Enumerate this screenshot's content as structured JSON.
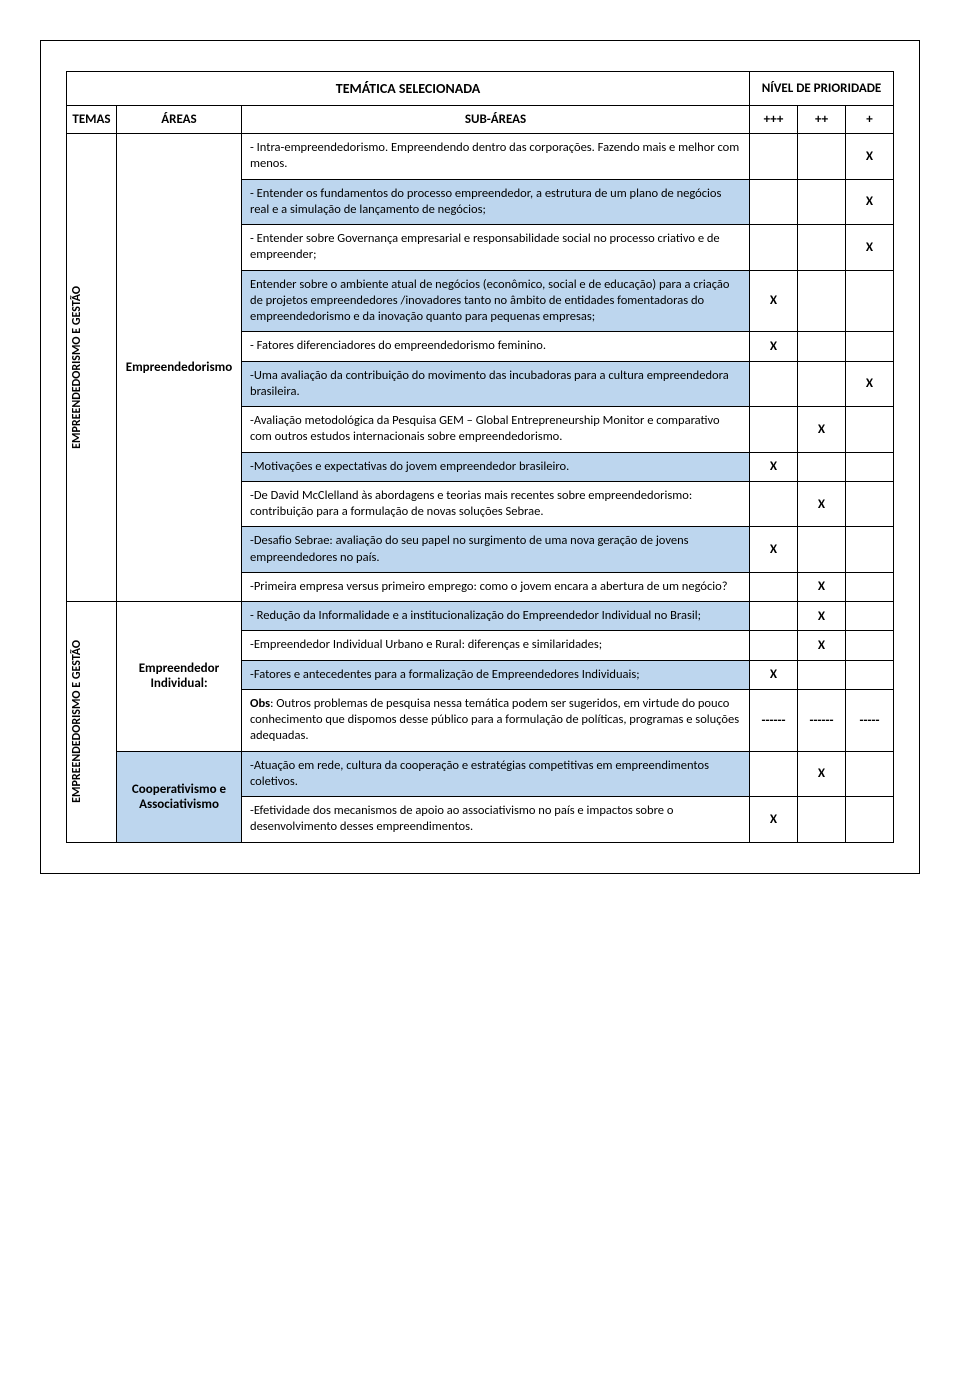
{
  "colors": {
    "row_highlight": "#bdd6ee",
    "border": "#000000",
    "background": "#ffffff"
  },
  "headers": {
    "tematica": "TEMÁTICA SELECIONADA",
    "nivel": "NÍVEL DE PRIORIDADE",
    "temas": "TEMAS",
    "areas": "ÁREAS",
    "subareas": "SUB-ÁREAS",
    "p1": "+++",
    "p2": "++",
    "p3": "+"
  },
  "tema1": "EMPREENDEDORISMO E GESTÃO",
  "tema2": "EMPREENDEDORISMO E GESTÃO",
  "area1": "Empreendedorismo",
  "area2": "Empreendedor Individual:",
  "area3": "Cooperativismo e Associativismo",
  "rows": [
    {
      "text": "- Intra-empreendedorismo. Empreendendo dentro das corporações. Fazendo mais e melhor com menos.",
      "p1": "",
      "p2": "",
      "p3": "X",
      "blue": false
    },
    {
      "text": "- Entender  os  fundamentos do processo empreendedor, a estrutura de um plano de negócios real e a simulação de lançamento de negócios;",
      "p1": "",
      "p2": "",
      "p3": "X",
      "blue": true
    },
    {
      "text": "- Entender sobre Governança empresarial e responsabilidade social no  processo criativo e de empreender;",
      "p1": "",
      "p2": "",
      "p3": "X",
      "blue": false
    },
    {
      "text": "Entender sobre o ambiente atual de negócios (econômico, social e de educação)  para a criação de projetos  empreendedores /inovadores tanto no âmbito de entidades fomentadoras do empreendedorismo e da inovação quanto  para  pequenas empresas;",
      "p1": "X",
      "p2": "",
      "p3": "",
      "blue": true
    },
    {
      "text": "- Fatores diferenciadores do empreendedorismo feminino.",
      "p1": "X",
      "p2": "",
      "p3": "",
      "blue": false
    },
    {
      "text": "-Uma avaliação da contribuição do movimento das incubadoras para a cultura empreendedora brasileira.",
      "p1": "",
      "p2": "",
      "p3": "X",
      "blue": true
    },
    {
      "text": "-Avaliação metodológica da Pesquisa GEM – Global Entrepreneurship Monitor e comparativo com outros estudos internacionais sobre empreendedorismo.",
      "p1": "",
      "p2": "X",
      "p3": "",
      "blue": false
    },
    {
      "text": "-Motivações e expectativas do jovem empreendedor brasileiro.",
      "p1": "X",
      "p2": "",
      "p3": "",
      "blue": true
    },
    {
      "text": "-De David McClelland às abordagens e teorias mais recentes sobre empreendedorismo: contribuição para a formulação de novas soluções Sebrae.",
      "p1": "",
      "p2": "X",
      "p3": "",
      "blue": false
    },
    {
      "text": "-Desafio Sebrae: avaliação do seu papel no surgimento de uma nova geração de jovens empreendedores no país.",
      "p1": "X",
      "p2": "",
      "p3": "",
      "blue": true
    },
    {
      "text": "-Primeira empresa versus primeiro emprego: como o jovem encara a abertura de um negócio?",
      "p1": "",
      "p2": "X",
      "p3": "",
      "blue": false
    },
    {
      "text": "- Redução da Informalidade e a institucionalização do Empreendedor Individual no Brasil;",
      "p1": "",
      "p2": "X",
      "p3": "",
      "blue": true
    },
    {
      "text": "-Empreendedor Individual Urbano e Rural: diferenças e similaridades;",
      "p1": "",
      "p2": "X",
      "p3": "",
      "blue": false
    },
    {
      "text": "-Fatores e antecedentes para a formalização de Empreendedores Individuais;",
      "p1": "X",
      "p2": "",
      "p3": "",
      "blue": true
    },
    {
      "text": "Obs: Outros problemas de pesquisa nessa temática podem ser sugeridos, em virtude do pouco conhecimento que dispomos desse público para a formulação de políticas, programas e soluções adequadas.",
      "p1": "------",
      "p2": "------",
      "p3": "-----",
      "blue": false,
      "bold_prefix": "Obs"
    },
    {
      "text": "-Atuação em rede, cultura da cooperação e estratégias competitivas em empreendimentos coletivos.",
      "p1": "",
      "p2": "X",
      "p3": "",
      "blue": true
    },
    {
      "text": "-Efetividade dos mecanismos de apoio ao associativismo no país e impactos sobre o desenvolvimento desses empreendimentos.",
      "p1": "X",
      "p2": "",
      "p3": "",
      "blue": false
    }
  ]
}
